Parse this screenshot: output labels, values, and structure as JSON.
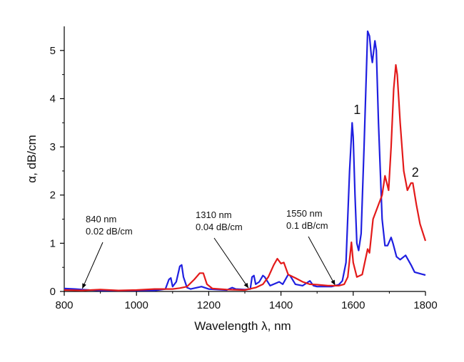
{
  "chart_data": {
    "type": "line",
    "xlabel": "Wavelength λ, nm",
    "ylabel": "α, dB/cm",
    "xlim": [
      800,
      1800
    ],
    "ylim": [
      0,
      5.5
    ],
    "x_ticks": [
      800,
      1000,
      1200,
      1400,
      1600,
      1800
    ],
    "y_ticks": [
      0,
      1,
      2,
      3,
      4,
      5
    ],
    "grid": false,
    "legend": "none",
    "series": [
      {
        "name": "1",
        "color": "#1f1fe0",
        "points": [
          [
            800,
            0.06
          ],
          [
            830,
            0.05
          ],
          [
            850,
            0.04
          ],
          [
            870,
            0.03
          ],
          [
            900,
            0.02
          ],
          [
            950,
            0.02
          ],
          [
            1000,
            0.02
          ],
          [
            1050,
            0.02
          ],
          [
            1080,
            0.05
          ],
          [
            1090,
            0.25
          ],
          [
            1095,
            0.28
          ],
          [
            1100,
            0.1
          ],
          [
            1110,
            0.2
          ],
          [
            1120,
            0.52
          ],
          [
            1125,
            0.55
          ],
          [
            1130,
            0.3
          ],
          [
            1140,
            0.08
          ],
          [
            1150,
            0.05
          ],
          [
            1180,
            0.1
          ],
          [
            1200,
            0.05
          ],
          [
            1250,
            0.03
          ],
          [
            1265,
            0.08
          ],
          [
            1275,
            0.05
          ],
          [
            1300,
            0.04
          ],
          [
            1315,
            0.05
          ],
          [
            1320,
            0.3
          ],
          [
            1325,
            0.33
          ],
          [
            1330,
            0.15
          ],
          [
            1340,
            0.2
          ],
          [
            1350,
            0.33
          ],
          [
            1355,
            0.3
          ],
          [
            1370,
            0.12
          ],
          [
            1395,
            0.2
          ],
          [
            1405,
            0.15
          ],
          [
            1420,
            0.35
          ],
          [
            1425,
            0.33
          ],
          [
            1440,
            0.15
          ],
          [
            1460,
            0.12
          ],
          [
            1480,
            0.22
          ],
          [
            1490,
            0.12
          ],
          [
            1500,
            0.1
          ],
          [
            1520,
            0.1
          ],
          [
            1540,
            0.1
          ],
          [
            1560,
            0.14
          ],
          [
            1570,
            0.22
          ],
          [
            1580,
            0.6
          ],
          [
            1590,
            2.5
          ],
          [
            1597,
            3.5
          ],
          [
            1600,
            3.2
          ],
          [
            1605,
            2.0
          ],
          [
            1610,
            1.0
          ],
          [
            1615,
            0.85
          ],
          [
            1622,
            1.2
          ],
          [
            1630,
            3.0
          ],
          [
            1640,
            5.4
          ],
          [
            1645,
            5.3
          ],
          [
            1650,
            4.9
          ],
          [
            1653,
            4.75
          ],
          [
            1660,
            5.2
          ],
          [
            1664,
            5.0
          ],
          [
            1670,
            3.5
          ],
          [
            1680,
            1.5
          ],
          [
            1688,
            0.95
          ],
          [
            1695,
            0.95
          ],
          [
            1705,
            1.12
          ],
          [
            1710,
            1.0
          ],
          [
            1720,
            0.72
          ],
          [
            1730,
            0.66
          ],
          [
            1745,
            0.75
          ],
          [
            1760,
            0.55
          ],
          [
            1770,
            0.4
          ],
          [
            1780,
            0.38
          ],
          [
            1790,
            0.36
          ],
          [
            1800,
            0.34
          ]
        ]
      },
      {
        "name": "2",
        "color": "#e31a1a",
        "points": [
          [
            800,
            0.03
          ],
          [
            850,
            0.02
          ],
          [
            900,
            0.04
          ],
          [
            950,
            0.02
          ],
          [
            1000,
            0.03
          ],
          [
            1050,
            0.05
          ],
          [
            1100,
            0.05
          ],
          [
            1120,
            0.07
          ],
          [
            1140,
            0.1
          ],
          [
            1160,
            0.25
          ],
          [
            1175,
            0.38
          ],
          [
            1185,
            0.38
          ],
          [
            1195,
            0.15
          ],
          [
            1210,
            0.06
          ],
          [
            1250,
            0.04
          ],
          [
            1300,
            0.03
          ],
          [
            1330,
            0.08
          ],
          [
            1350,
            0.15
          ],
          [
            1365,
            0.3
          ],
          [
            1380,
            0.55
          ],
          [
            1390,
            0.68
          ],
          [
            1400,
            0.58
          ],
          [
            1408,
            0.6
          ],
          [
            1420,
            0.35
          ],
          [
            1440,
            0.28
          ],
          [
            1460,
            0.2
          ],
          [
            1480,
            0.15
          ],
          [
            1500,
            0.14
          ],
          [
            1530,
            0.12
          ],
          [
            1560,
            0.12
          ],
          [
            1575,
            0.15
          ],
          [
            1585,
            0.3
          ],
          [
            1595,
            1.02
          ],
          [
            1600,
            0.6
          ],
          [
            1610,
            0.3
          ],
          [
            1625,
            0.35
          ],
          [
            1640,
            0.88
          ],
          [
            1645,
            0.8
          ],
          [
            1655,
            1.5
          ],
          [
            1670,
            1.8
          ],
          [
            1680,
            2.0
          ],
          [
            1688,
            2.4
          ],
          [
            1693,
            2.25
          ],
          [
            1698,
            2.1
          ],
          [
            1705,
            3.0
          ],
          [
            1712,
            4.2
          ],
          [
            1718,
            4.7
          ],
          [
            1722,
            4.5
          ],
          [
            1730,
            3.5
          ],
          [
            1740,
            2.5
          ],
          [
            1750,
            2.1
          ],
          [
            1760,
            2.25
          ],
          [
            1765,
            2.25
          ],
          [
            1775,
            1.8
          ],
          [
            1785,
            1.4
          ],
          [
            1800,
            1.05
          ]
        ]
      }
    ],
    "annotations": [
      {
        "lines": [
          "840 nm",
          "0.02 dB/cm"
        ],
        "target": [
          850,
          0.03
        ]
      },
      {
        "lines": [
          "1310 nm",
          "0.04 dB/cm"
        ],
        "target": [
          1310,
          0.04
        ]
      },
      {
        "lines": [
          "1550 nm",
          "0.1 dB/cm"
        ],
        "target": [
          1550,
          0.1
        ]
      }
    ]
  }
}
